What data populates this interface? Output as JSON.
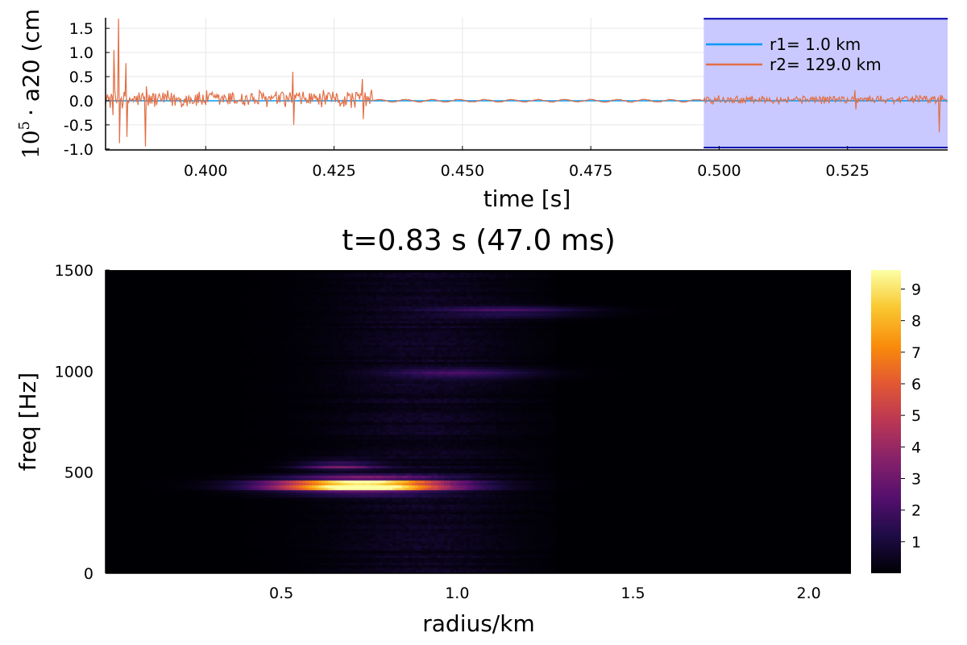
{
  "chart_data": [
    {
      "type": "line",
      "xlabel": "time [s]",
      "ylabel_prefix": "10",
      "ylabel_exponent": "5",
      "ylabel_rest": "· a20 (cm",
      "xlim": [
        0.3805,
        0.5445
      ],
      "ylim": [
        -1.02,
        1.72
      ],
      "xticks": [
        0.4,
        0.425,
        0.45,
        0.475,
        0.5,
        0.525
      ],
      "xtick_labels": [
        "0.400",
        "0.425",
        "0.450",
        "0.475",
        "0.500",
        "0.525"
      ],
      "yticks": [
        -1.0,
        -0.5,
        0.0,
        0.5,
        1.0,
        1.5
      ],
      "ytick_labels": [
        "-1.0",
        "-0.5",
        "0.0",
        "0.5",
        "1.0",
        "1.5"
      ],
      "grid": true,
      "legend_position": "top-right",
      "highlight_window": {
        "x_start": 0.497,
        "x_end": 0.5445,
        "y_min": -0.97,
        "y_max": 1.7,
        "fill": "#c9c9ff",
        "edge": "#0000b0"
      },
      "series": [
        {
          "name": "r1= 1.0 km",
          "color": "#009af9",
          "x_start": 0.3805,
          "x_end": 0.5445,
          "value": 0.0
        },
        {
          "name": "r2= 129.0 km",
          "color": "#e26f46",
          "segments": [
            {
              "x_start": 0.3805,
              "x_end": 0.4325,
              "amplitude": 0.22,
              "bursts": [
                [
                  0.3818,
                  -0.3,
                  1.05
                ],
                [
                  0.3829,
                  1.7,
                  -0.88
                ],
                [
                  0.3843,
                  0.78,
                  -0.75
                ],
                [
                  0.3882,
                  -0.95,
                  0.3
                ],
                [
                  0.4168,
                  0.6,
                  -0.5
                ],
                [
                  0.4305,
                  0.45,
                  -0.38
                ]
              ]
            },
            {
              "x_start": 0.4325,
              "x_end": 0.497,
              "amplitude": 0.025,
              "bursts": []
            },
            {
              "x_start": 0.497,
              "x_end": 0.5445,
              "amplitude": 0.1,
              "bursts": [
                [
                  0.5263,
                  0.22,
                  -0.18
                ],
                [
                  0.5428,
                  -0.65,
                  0.12
                ]
              ]
            }
          ]
        }
      ]
    },
    {
      "type": "heatmap",
      "title": "t=0.83 s (47.0 ms)",
      "xlabel": "radius/km",
      "ylabel": "freq [Hz]",
      "xlim": [
        0.0,
        2.12
      ],
      "ylim": [
        0,
        1500
      ],
      "xticks": [
        0.5,
        1.0,
        1.5,
        2.0
      ],
      "xtick_labels": [
        "0.5",
        "1.0",
        "1.5",
        "2.0"
      ],
      "yticks": [
        0,
        500,
        1000,
        1500
      ],
      "ytick_labels": [
        "0",
        "500",
        "1000",
        "1500"
      ],
      "colorbar": {
        "min": 0,
        "max": 9.6,
        "ticks": [
          1,
          2,
          3,
          4,
          5,
          6,
          7,
          8,
          9
        ],
        "tick_labels": [
          "1",
          "2",
          "3",
          "4",
          "5",
          "6",
          "7",
          "8",
          "9"
        ],
        "colormap": "inferno"
      },
      "peaks": [
        {
          "radius": 0.72,
          "freq": 440,
          "value": 9.5
        },
        {
          "radius": 0.66,
          "freq": 540,
          "value": 3.0
        },
        {
          "radius": 1.0,
          "freq": 995,
          "value": 2.3
        },
        {
          "radius": 1.15,
          "freq": 1300,
          "value": 2.0
        }
      ]
    }
  ]
}
